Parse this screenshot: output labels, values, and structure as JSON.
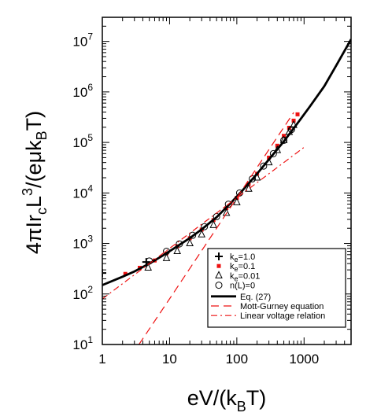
{
  "chart_data": {
    "type": "scatter",
    "xscale": "log",
    "yscale": "log",
    "xlim": [
      1,
      5000
    ],
    "ylim": [
      10,
      30000000
    ],
    "grid": false,
    "legend_position": "bottom-right",
    "xlabel_parts": [
      "eV/(k",
      "B",
      "T)"
    ],
    "ylabel_parts": [
      "4πIr",
      "c",
      "L",
      "3",
      "/(eμk",
      "B",
      "T)"
    ],
    "x_ticks": [
      {
        "value": 1,
        "label": "1"
      },
      {
        "value": 10,
        "label": "10"
      },
      {
        "value": 100,
        "label": "100"
      },
      {
        "value": 1000,
        "label": "1000"
      }
    ],
    "y_ticks": [
      {
        "value": 10,
        "base": "10",
        "exp": "1"
      },
      {
        "value": 100,
        "base": "10",
        "exp": "2"
      },
      {
        "value": 1000,
        "base": "10",
        "exp": "3"
      },
      {
        "value": 10000,
        "base": "10",
        "exp": "4"
      },
      {
        "value": 100000,
        "base": "10",
        "exp": "5"
      },
      {
        "value": 1000000,
        "base": "10",
        "exp": "6"
      },
      {
        "value": 10000000,
        "base": "10",
        "exp": "7"
      }
    ],
    "series": [
      {
        "name_parts": [
          "k",
          "e",
          "=1.0"
        ],
        "marker": "plus",
        "color": "#000000",
        "x": [
          1,
          4.5
        ],
        "y": [
          260,
          430
        ]
      },
      {
        "name_parts": [
          "k",
          "e",
          "=0.1"
        ],
        "marker": "square",
        "color": "#ee1111",
        "x": [
          2.2,
          3.6,
          6,
          9,
          13,
          20,
          30,
          45,
          70,
          100,
          150,
          200,
          300,
          400,
          500,
          600,
          700,
          800
        ],
        "y": [
          250,
          330,
          460,
          640,
          880,
          1270,
          1880,
          2900,
          5000,
          8000,
          15000,
          24000,
          50000,
          86000,
          135000,
          195000,
          270000,
          360000
        ]
      },
      {
        "name_parts": [
          "k",
          "e",
          "=0.01"
        ],
        "marker": "triangle",
        "color": "#000000",
        "x": [
          4.8,
          9,
          13,
          20,
          30,
          45,
          70,
          100,
          150,
          200,
          300,
          400,
          500,
          600,
          700
        ],
        "y": [
          330,
          510,
          700,
          1000,
          1500,
          2300,
          4000,
          6500,
          12000,
          20000,
          40000,
          70000,
          110000,
          160000,
          220000
        ]
      },
      {
        "name_parts": [
          "n(L)=0"
        ],
        "marker": "circle",
        "color": "#000000",
        "x": [
          5,
          9,
          14,
          22,
          33,
          50,
          75,
          110,
          170,
          250,
          350,
          500,
          650
        ],
        "y": [
          450,
          700,
          980,
          1450,
          2150,
          3400,
          6000,
          10000,
          19000,
          34000,
          60000,
          110000,
          180000
        ]
      },
      {
        "name_parts": [
          "Eq. (27)"
        ],
        "line": "solid",
        "color": "#000000",
        "x": [
          1,
          2,
          3,
          5,
          8,
          12,
          20,
          30,
          50,
          80,
          120,
          200,
          300,
          500,
          800,
          1200,
          2000,
          3000,
          5000
        ],
        "y": [
          150,
          220,
          280,
          400,
          580,
          820,
          1280,
          1900,
          3300,
          6200,
          11000,
          24000,
          46000,
          105000,
          240000,
          500000,
          1300000,
          3300000,
          11000000
        ]
      },
      {
        "name_parts": [
          "Mott-Gurney equation"
        ],
        "line": "dashed",
        "color": "#ee1111",
        "x": [
          3.5,
          10,
          30,
          100,
          300,
          700
        ],
        "y": [
          10,
          80,
          720,
          8000,
          72000,
          390000
        ]
      },
      {
        "name_parts": [
          "Linear voltage relation"
        ],
        "line": "dashdot",
        "color": "#ee1111",
        "x": [
          1,
          10,
          100,
          1000
        ],
        "y": [
          80,
          800,
          8000,
          80000
        ]
      }
    ]
  }
}
